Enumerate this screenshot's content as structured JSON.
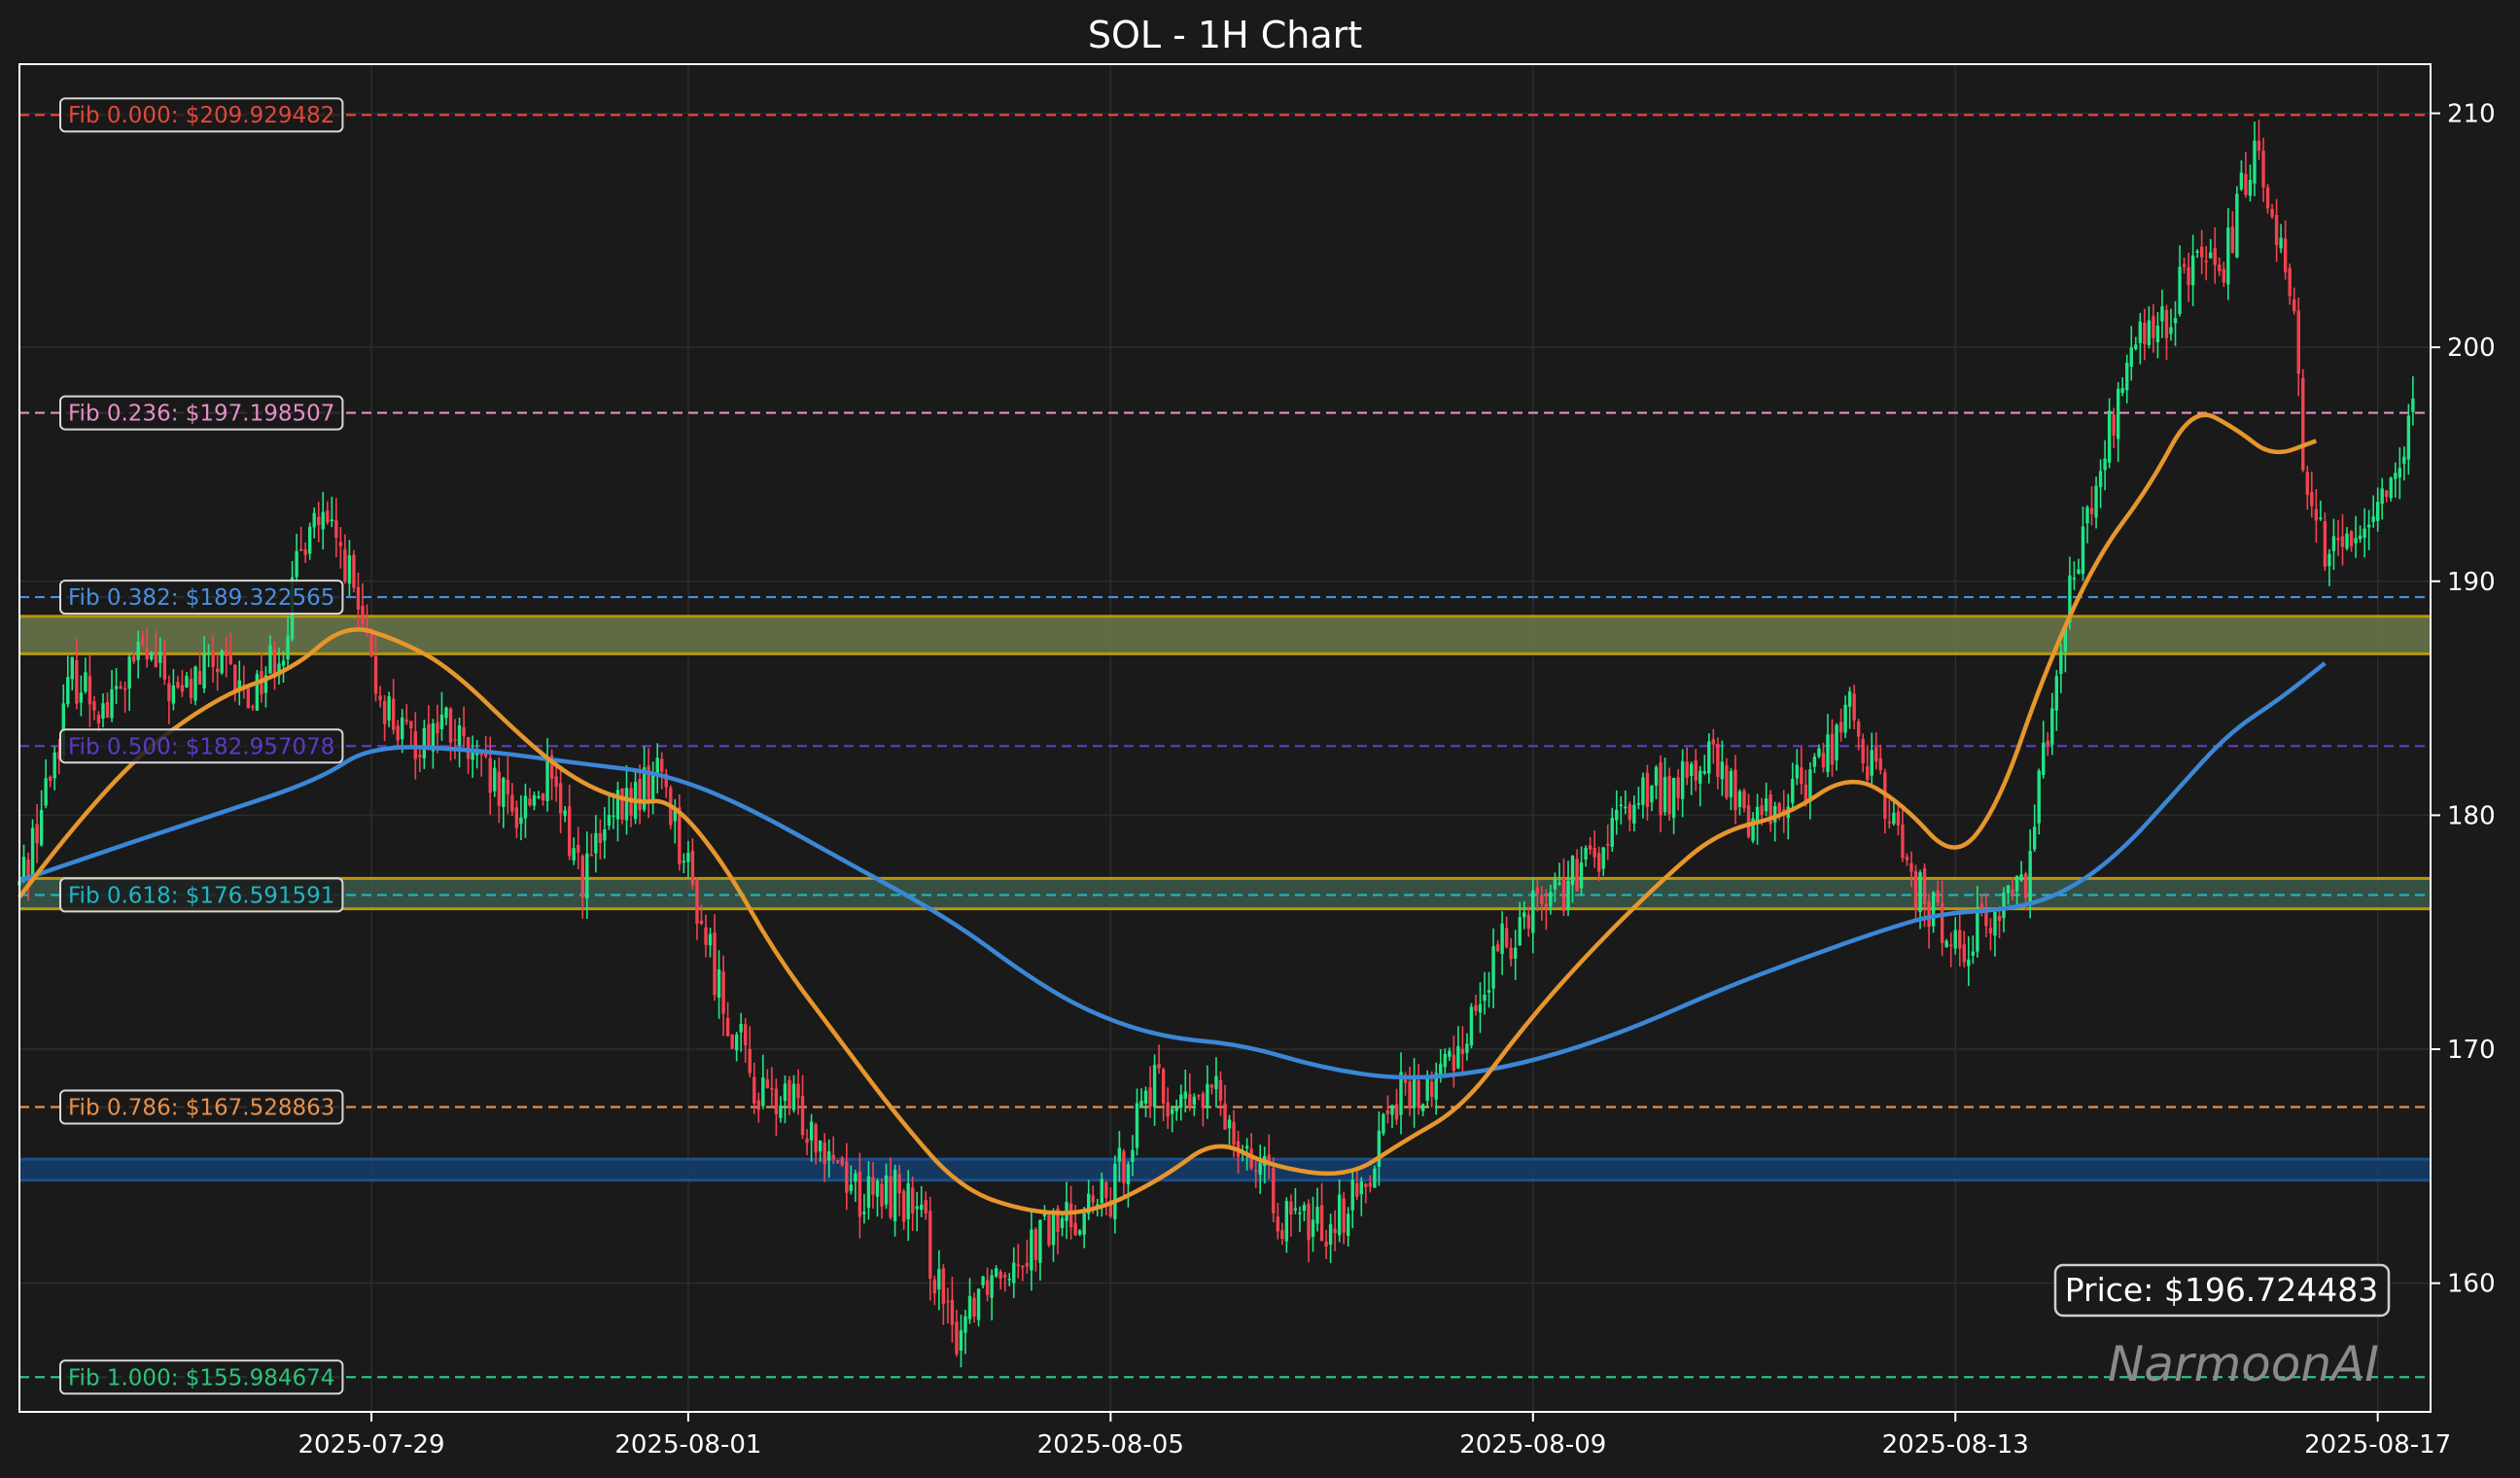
{
  "chart_data": {
    "type": "candlestick",
    "title": "SOL - 1H Chart",
    "xlabel": "",
    "ylabel": "",
    "ylim": [
      154.5,
      212.1
    ],
    "xlim": [
      "2025-07-25T16:00",
      "2025-08-17T12:00"
    ],
    "grid": true,
    "x_ticks": [
      "2025-07-29",
      "2025-08-01",
      "2025-08-05",
      "2025-08-09",
      "2025-08-13",
      "2025-08-17"
    ],
    "y_ticks": [
      160,
      170,
      180,
      190,
      200,
      210
    ],
    "fib_levels": [
      {
        "label": "Fib 0.000: $209.929482",
        "value": 209.929482,
        "color": "#e0483c"
      },
      {
        "label": "Fib 0.236: $197.198507",
        "value": 197.198507,
        "color": "#e48fc6"
      },
      {
        "label": "Fib 0.382: $189.322565",
        "value": 189.322565,
        "color": "#4a8fe0"
      },
      {
        "label": "Fib 0.500: $182.957078",
        "value": 182.957078,
        "color": "#5a3bc4"
      },
      {
        "label": "Fib 0.618: $176.591591",
        "value": 176.591591,
        "color": "#1fb6c4"
      },
      {
        "label": "Fib 0.786: $167.528863",
        "value": 167.528863,
        "color": "#e8904a"
      },
      {
        "label": "Fib 1.000: $155.984674",
        "value": 155.984674,
        "color": "#2ec27e"
      }
    ],
    "zones": [
      {
        "low": 186.9,
        "high": 188.5,
        "fill": "#6b7a4c",
        "edge": "#b8960c"
      },
      {
        "low": 176.0,
        "high": 177.3,
        "fill": "#3b5a4a",
        "edge": "#b8960c"
      },
      {
        "low": 164.4,
        "high": 165.3,
        "fill": "#153e6e",
        "edge": "#1d4f8a"
      }
    ],
    "ohlc_keypoints": [
      [
        "2025-07-25T16:00",
        177.0
      ],
      [
        "2025-07-25T22:00",
        181.0
      ],
      [
        "2025-07-26T04:00",
        186.0
      ],
      [
        "2025-07-26T12:00",
        184.5
      ],
      [
        "2025-07-26T20:00",
        187.0
      ],
      [
        "2025-07-27T04:00",
        185.0
      ],
      [
        "2025-07-27T12:00",
        186.5
      ],
      [
        "2025-07-27T20:00",
        185.0
      ],
      [
        "2025-07-28T04:00",
        187.5
      ],
      [
        "2025-07-28T10:00",
        193.0
      ],
      [
        "2025-07-28T18:00",
        191.0
      ],
      [
        "2025-07-29T00:00",
        186.0
      ],
      [
        "2025-07-29T08:00",
        183.0
      ],
      [
        "2025-07-29T16:00",
        184.0
      ],
      [
        "2025-07-30T00:00",
        182.0
      ],
      [
        "2025-07-30T08:00",
        180.0
      ],
      [
        "2025-07-30T16:00",
        181.5
      ],
      [
        "2025-07-31T00:00",
        177.5
      ],
      [
        "2025-07-31T08:00",
        180.0
      ],
      [
        "2025-07-31T18:00",
        182.0
      ],
      [
        "2025-08-01T00:00",
        177.5
      ],
      [
        "2025-08-01T08:00",
        172.0
      ],
      [
        "2025-08-01T16:00",
        168.0
      ],
      [
        "2025-08-02T00:00",
        167.5
      ],
      [
        "2025-08-02T08:00",
        166.0
      ],
      [
        "2025-08-02T16:00",
        163.5
      ],
      [
        "2025-08-03T00:00",
        164.0
      ],
      [
        "2025-08-03T06:00",
        162.0
      ],
      [
        "2025-08-03T12:00",
        157.5
      ],
      [
        "2025-08-03T18:00",
        160.0
      ],
      [
        "2025-08-04T00:00",
        161.0
      ],
      [
        "2025-08-04T08:00",
        162.0
      ],
      [
        "2025-08-04T16:00",
        163.0
      ],
      [
        "2025-08-05T00:00",
        163.5
      ],
      [
        "2025-08-05T08:00",
        168.5
      ],
      [
        "2025-08-05T16:00",
        167.5
      ],
      [
        "2025-08-06T00:00",
        168.0
      ],
      [
        "2025-08-06T08:00",
        165.5
      ],
      [
        "2025-08-06T16:00",
        162.5
      ],
      [
        "2025-08-07T00:00",
        162.5
      ],
      [
        "2025-08-07T08:00",
        163.5
      ],
      [
        "2025-08-07T16:00",
        168.0
      ],
      [
        "2025-08-08T00:00",
        168.0
      ],
      [
        "2025-08-08T08:00",
        170.5
      ],
      [
        "2025-08-08T16:00",
        174.0
      ],
      [
        "2025-08-09T00:00",
        176.5
      ],
      [
        "2025-08-09T08:00",
        177.0
      ],
      [
        "2025-08-09T16:00",
        178.5
      ],
      [
        "2025-08-10T00:00",
        181.0
      ],
      [
        "2025-08-10T08:00",
        181.0
      ],
      [
        "2025-08-10T16:00",
        182.5
      ],
      [
        "2025-08-11T00:00",
        180.0
      ],
      [
        "2025-08-11T08:00",
        180.5
      ],
      [
        "2025-08-11T16:00",
        182.0
      ],
      [
        "2025-08-12T00:00",
        184.5
      ],
      [
        "2025-08-12T08:00",
        180.5
      ],
      [
        "2025-08-12T16:00",
        176.5
      ],
      [
        "2025-08-13T00:00",
        174.5
      ],
      [
        "2025-08-13T08:00",
        175.5
      ],
      [
        "2025-08-13T16:00",
        177.5
      ],
      [
        "2025-08-14T00:00",
        188.0
      ],
      [
        "2025-08-14T08:00",
        194.0
      ],
      [
        "2025-08-14T16:00",
        200.0
      ],
      [
        "2025-08-15T00:00",
        201.0
      ],
      [
        "2025-08-15T06:00",
        204.0
      ],
      [
        "2025-08-15T12:00",
        202.5
      ],
      [
        "2025-08-15T20:00",
        209.0
      ],
      [
        "2025-08-16T04:00",
        203.0
      ],
      [
        "2025-08-16T08:00",
        193.0
      ],
      [
        "2025-08-16T14:00",
        191.0
      ],
      [
        "2025-08-16T20:00",
        192.5
      ],
      [
        "2025-08-17T02:00",
        194.0
      ],
      [
        "2025-08-17T08:00",
        197.0
      ]
    ],
    "ema_orange": [
      [
        "2025-07-25T16:00",
        176.5
      ],
      [
        "2025-07-26T12:00",
        181.5
      ],
      [
        "2025-07-27T12:00",
        185.0
      ],
      [
        "2025-07-28T06:00",
        186.2
      ],
      [
        "2025-07-28T18:00",
        188.2
      ],
      [
        "2025-07-29T06:00",
        187.5
      ],
      [
        "2025-07-29T18:00",
        186.3
      ],
      [
        "2025-07-30T12:00",
        183.0
      ],
      [
        "2025-07-31T00:00",
        181.3
      ],
      [
        "2025-07-31T12:00",
        180.5
      ],
      [
        "2025-07-31T20:00",
        180.7
      ],
      [
        "2025-08-01T08:00",
        178.0
      ],
      [
        "2025-08-01T20:00",
        174.0
      ],
      [
        "2025-08-02T10:00",
        170.5
      ],
      [
        "2025-08-03T00:00",
        167.0
      ],
      [
        "2025-08-03T14:00",
        164.0
      ],
      [
        "2025-08-04T06:00",
        163.0
      ],
      [
        "2025-08-04T20:00",
        163.0
      ],
      [
        "2025-08-05T12:00",
        164.5
      ],
      [
        "2025-08-06T00:00",
        166.2
      ],
      [
        "2025-08-06T12:00",
        165.0
      ],
      [
        "2025-08-07T06:00",
        164.5
      ],
      [
        "2025-08-07T18:00",
        166.0
      ],
      [
        "2025-08-08T08:00",
        167.5
      ],
      [
        "2025-08-08T22:00",
        171.0
      ],
      [
        "2025-08-09T12:00",
        174.0
      ],
      [
        "2025-08-10T04:00",
        177.0
      ],
      [
        "2025-08-10T18:00",
        179.3
      ],
      [
        "2025-08-11T10:00",
        180.0
      ],
      [
        "2025-08-12T00:00",
        181.8
      ],
      [
        "2025-08-12T12:00",
        180.5
      ],
      [
        "2025-08-13T00:00",
        178.0
      ],
      [
        "2025-08-13T10:00",
        180.5
      ],
      [
        "2025-08-13T20:00",
        186.0
      ],
      [
        "2025-08-14T08:00",
        191.0
      ],
      [
        "2025-08-14T20:00",
        194.0
      ],
      [
        "2025-08-15T06:00",
        197.5
      ],
      [
        "2025-08-15T16:00",
        196.5
      ],
      [
        "2025-08-16T00:00",
        195.3
      ],
      [
        "2025-08-16T10:00",
        196.0
      ]
    ],
    "sma_blue": [
      [
        "2025-07-25T16:00",
        177.2
      ],
      [
        "2025-07-26T12:00",
        178.5
      ],
      [
        "2025-07-27T12:00",
        180.0
      ],
      [
        "2025-07-28T12:00",
        181.5
      ],
      [
        "2025-07-29T00:00",
        183.0
      ],
      [
        "2025-07-30T00:00",
        182.8
      ],
      [
        "2025-07-31T00:00",
        182.2
      ],
      [
        "2025-07-31T18:00",
        181.8
      ],
      [
        "2025-08-01T12:00",
        180.5
      ],
      [
        "2025-08-02T12:00",
        178.0
      ],
      [
        "2025-08-03T12:00",
        175.5
      ],
      [
        "2025-08-04T06:00",
        173.0
      ],
      [
        "2025-08-04T20:00",
        171.5
      ],
      [
        "2025-08-05T12:00",
        170.5
      ],
      [
        "2025-08-06T06:00",
        170.2
      ],
      [
        "2025-08-07T00:00",
        169.2
      ],
      [
        "2025-08-07T18:00",
        168.7
      ],
      [
        "2025-08-08T12:00",
        169.0
      ],
      [
        "2025-08-09T06:00",
        169.8
      ],
      [
        "2025-08-10T00:00",
        171.0
      ],
      [
        "2025-08-10T18:00",
        172.5
      ],
      [
        "2025-08-11T12:00",
        173.8
      ],
      [
        "2025-08-12T06:00",
        175.0
      ],
      [
        "2025-08-12T20:00",
        175.8
      ],
      [
        "2025-08-13T14:00",
        176.0
      ],
      [
        "2025-08-14T02:00",
        176.8
      ],
      [
        "2025-08-14T14:00",
        178.5
      ],
      [
        "2025-08-15T02:00",
        181.0
      ],
      [
        "2025-08-15T14:00",
        183.5
      ],
      [
        "2025-08-16T02:00",
        185.0
      ],
      [
        "2025-08-16T12:00",
        186.5
      ]
    ],
    "current_price": 196.724483,
    "up_color": "#21e585",
    "down_color": "#f2424f",
    "ema_color": "#e6962c",
    "sma_color": "#3b87d6"
  },
  "annotations": {
    "price_label": "Price: $196.724483",
    "watermark": "NarmoonAI"
  }
}
